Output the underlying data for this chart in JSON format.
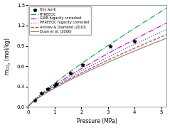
{
  "title": "",
  "xlabel": "Pressure (MPa)",
  "ylabel": "$m_{CO_2}$ (mol/kg)",
  "xlim": [
    0.0,
    5.2
  ],
  "ylim": [
    0.0,
    1.5
  ],
  "xticks": [
    0.0,
    1.0,
    2.0,
    3.0,
    4.0,
    5.0
  ],
  "yticks": [
    0.0,
    0.3,
    0.6,
    0.9,
    1.2,
    1.5
  ],
  "scatter_x": [
    0.25,
    0.5,
    0.75,
    1.0,
    1.05,
    1.6,
    2.05,
    3.1,
    4.0
  ],
  "scatter_y": [
    0.1,
    0.2,
    0.27,
    0.32,
    0.34,
    0.5,
    0.62,
    0.9,
    0.97
  ],
  "scatter_color": "#000000",
  "legend_labels": [
    "this work",
    "PHREEQC",
    "GWB fugacity corrected",
    "PHREEQC fugacity corrected",
    "Akinlev & Diamond (2010)",
    "Duan et al. (2006)"
  ],
  "line_colors": [
    "#00aa55",
    "#dd00dd",
    "#0077cc",
    "#dd3333",
    "#888888"
  ],
  "line_styles": [
    "-.",
    "-.",
    ":",
    "--",
    "-"
  ],
  "curve_params": [
    [
      0.52,
      0.12
    ],
    [
      0.37,
      0.09
    ],
    [
      0.34,
      0.085
    ],
    [
      0.31,
      0.075
    ],
    [
      0.295,
      0.065
    ]
  ],
  "background_color": "#ffffff"
}
